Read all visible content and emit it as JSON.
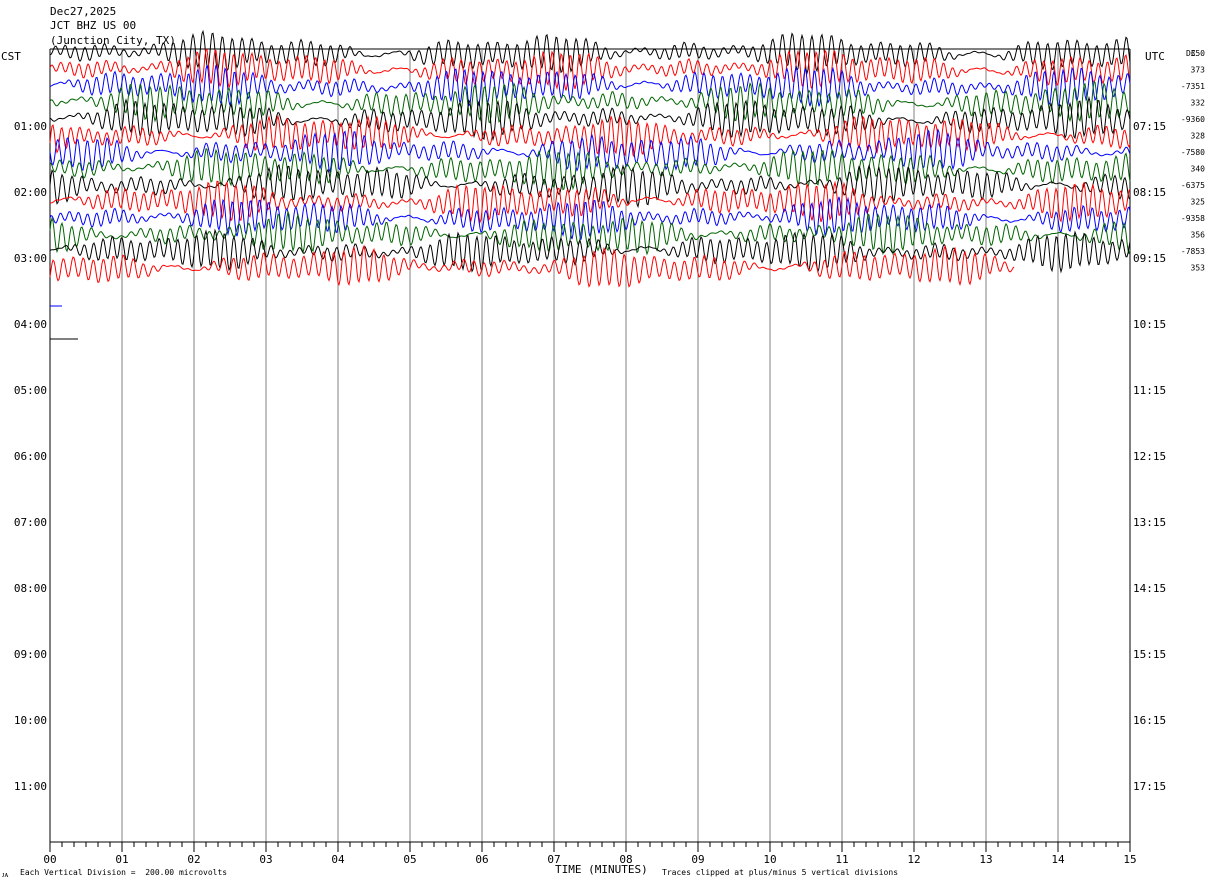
{
  "header": {
    "date": "Dec27,2025",
    "station": "JCT BHZ US 00",
    "location": "(Junction City, TX)"
  },
  "left_axis_label": "CST",
  "right_axis_label": "UTC",
  "dc_label": "DC",
  "footer": {
    "xlabel": "TIME (MINUTES)",
    "scale_note": "Each Vertical Division =  200.00 microvolts",
    "clip_note": "Traces clipped at plus/minus 5 vertical divisions"
  },
  "chart_data": {
    "type": "line",
    "title": "",
    "xlabel": "TIME (MINUTES)",
    "ylabel": "",
    "xlim": [
      0,
      15
    ],
    "x_ticks": [
      "00",
      "01",
      "02",
      "03",
      "04",
      "05",
      "06",
      "07",
      "08",
      "09",
      "10",
      "11",
      "12",
      "13",
      "14",
      "15"
    ],
    "left_hour_labels": [
      "01:00",
      "02:00",
      "03:00",
      "04:00",
      "05:00",
      "06:00",
      "07:00",
      "08:00",
      "09:00",
      "10:00",
      "11:00"
    ],
    "right_hour_labels": [
      "07:15",
      "08:15",
      "09:15",
      "10:15",
      "11:15",
      "12:15",
      "13:15",
      "14:15",
      "15:15",
      "16:15",
      "17:15"
    ],
    "trace_colors": [
      "#000000",
      "#ff0000",
      "#0000ff",
      "#006400"
    ],
    "trace_dc_offsets": [
      "350",
      "373",
      "-7351",
      "332",
      "-9360",
      "328",
      "-7580",
      "340",
      "-6375",
      "325",
      "-9358",
      "356",
      "-7853",
      "353"
    ],
    "traces_count": 14,
    "last_trace_end_minute": 13.4,
    "grid": "vertical lines each minute",
    "legend": "none"
  }
}
